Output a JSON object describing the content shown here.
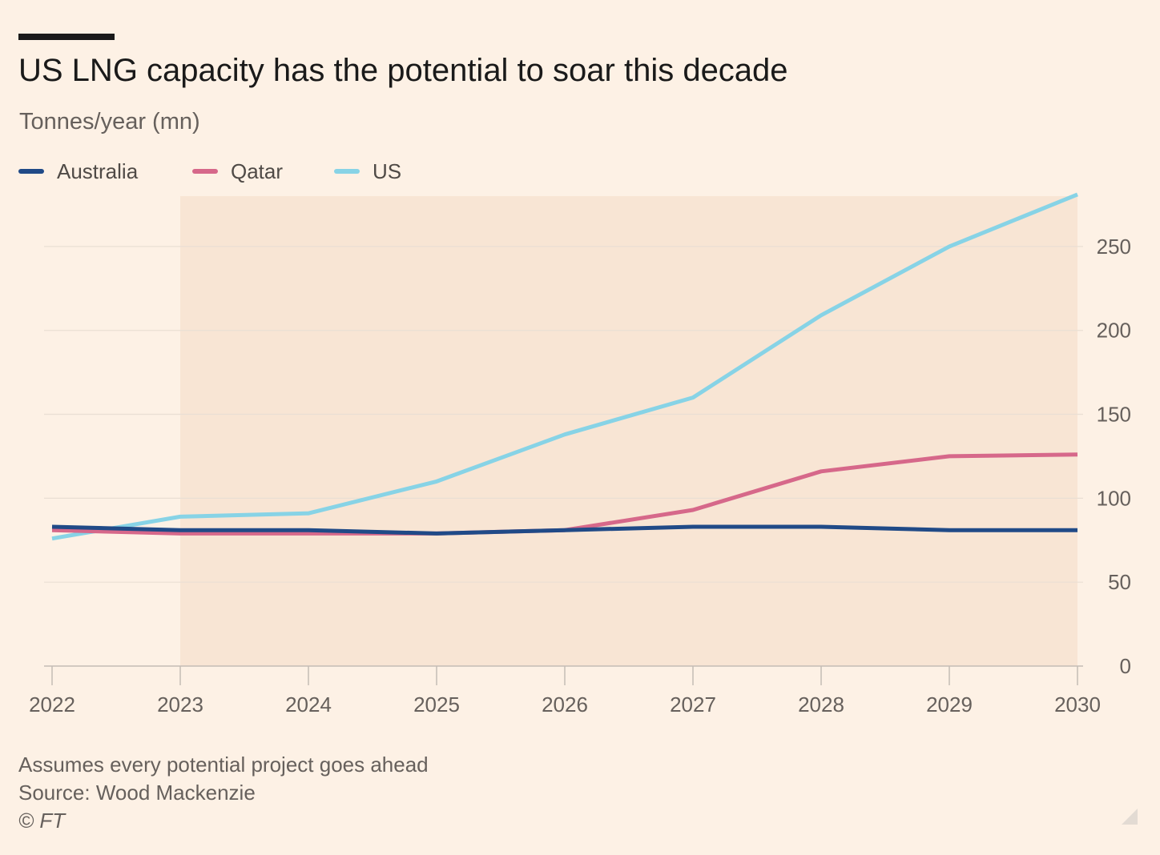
{
  "header": {
    "title": "US LNG capacity has the potential to soar this decade",
    "subtitle": "Tonnes/year (mn)"
  },
  "colors": {
    "background": "#fdf1e5",
    "forecast_band": "#f8e5d4",
    "Australia": "#204a87",
    "Qatar": "#d6688a",
    "US": "#87d3e6",
    "grid": "#eadfd4",
    "axis": "#c4bcb5"
  },
  "legend": [
    {
      "name": "Australia",
      "color": "#204a87"
    },
    {
      "name": "Qatar",
      "color": "#d6688a"
    },
    {
      "name": "US",
      "color": "#87d3e6"
    }
  ],
  "chart_data": {
    "type": "line",
    "title": "US LNG capacity has the potential to soar this decade",
    "ylabel": "Tonnes/year (mn)",
    "x": [
      2022,
      2023,
      2024,
      2025,
      2026,
      2027,
      2028,
      2029,
      2030
    ],
    "x_tick_labels": [
      "2022",
      "2023",
      "2024",
      "2025",
      "2026",
      "2027",
      "2028",
      "2029",
      "2030"
    ],
    "xlim": [
      2022,
      2030
    ],
    "ylim": [
      0,
      280
    ],
    "y_ticks": [
      0,
      50,
      100,
      150,
      200,
      250
    ],
    "y_axis_side": "right",
    "grid": true,
    "legend_position": "top-left",
    "shaded_range": [
      2023,
      2030
    ],
    "series": [
      {
        "name": "Australia",
        "color": "#204a87",
        "values": [
          83,
          81,
          81,
          79,
          81,
          83,
          83,
          81,
          81
        ]
      },
      {
        "name": "Qatar",
        "color": "#d6688a",
        "values": [
          81,
          79,
          79,
          79,
          81,
          93,
          116,
          125,
          126
        ]
      },
      {
        "name": "US",
        "color": "#87d3e6",
        "values": [
          76,
          89,
          91,
          110,
          138,
          160,
          209,
          250,
          281
        ]
      }
    ]
  },
  "notes": {
    "assumption": "Assumes every potential project goes ahead",
    "source": "Source: Wood Mackenzie",
    "credit": "© FT"
  }
}
